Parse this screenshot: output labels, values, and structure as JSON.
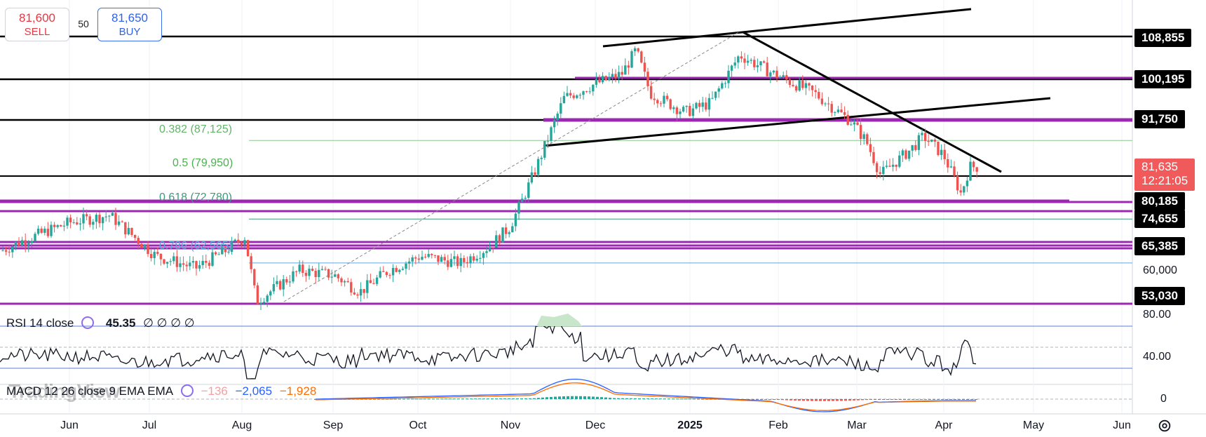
{
  "trade": {
    "sell_price": "81,600",
    "sell_label": "SELL",
    "spread": "50",
    "buy_price": "81,650",
    "buy_label": "BUY"
  },
  "fib": {
    "l382": "0.382 (87,125)",
    "l500": "0.5 (79,950)",
    "l618": "0.618 (72,780)",
    "l786": "0.786 (62,565)"
  },
  "price_tags": [
    "108,855",
    "100,195",
    "91,750",
    "80,185",
    "74,655",
    "65,385",
    "53,030"
  ],
  "current": {
    "price": "81,635",
    "countdown": "12:21:05"
  },
  "axis": {
    "price_labels": [
      "60,000"
    ],
    "rsi_labels": [
      "80.00",
      "40.00"
    ],
    "macd_labels": [
      "0"
    ]
  },
  "months": [
    "Jun",
    "Jul",
    "Aug",
    "Sep",
    "Oct",
    "Nov",
    "Dec",
    "2025",
    "Feb",
    "Mar",
    "Apr",
    "May",
    "Jun"
  ],
  "rsi": {
    "title": "RSI 14 close",
    "value": "45.35",
    "extras": "∅ ∅ ∅ ∅"
  },
  "macd": {
    "title": "MACD 12 26 close 9 EMA EMA",
    "hist": "−136",
    "macd": "−2,065",
    "signal": "−1,928"
  },
  "watermark": "TradingView",
  "colors": {
    "up": "#26a69a",
    "down": "#ef5350",
    "purple": "#9c27b0",
    "sell": "#e03945",
    "buy": "#2f62e8"
  },
  "chart_data": {
    "type": "candlestick",
    "horizontal_levels": [
      108855,
      100195,
      91750,
      80185,
      74655,
      65385,
      53030
    ],
    "fibonacci": [
      {
        "ratio": 0.382,
        "value": 87125
      },
      {
        "ratio": 0.5,
        "value": 79950
      },
      {
        "ratio": 0.618,
        "value": 72780
      },
      {
        "ratio": 0.786,
        "value": 62565
      }
    ],
    "closes": [
      [
        "2024-05-01",
        62000
      ],
      [
        "2024-05-15",
        66000
      ],
      [
        "2024-06-01",
        70000
      ],
      [
        "2024-06-15",
        71500
      ],
      [
        "2024-07-01",
        63000
      ],
      [
        "2024-07-15",
        60500
      ],
      [
        "2024-07-25",
        64000
      ],
      [
        "2024-08-01",
        67000
      ],
      [
        "2024-08-05",
        53500
      ],
      [
        "2024-08-20",
        60000
      ],
      [
        "2024-09-01",
        59000
      ],
      [
        "2024-09-10",
        55500
      ],
      [
        "2024-09-20",
        60000
      ],
      [
        "2024-10-01",
        63000
      ],
      [
        "2024-10-15",
        61500
      ],
      [
        "2024-10-25",
        65000
      ],
      [
        "2024-11-01",
        69000
      ],
      [
        "2024-11-05",
        74000
      ],
      [
        "2024-11-10",
        81000
      ],
      [
        "2024-11-20",
        96000
      ],
      [
        "2024-12-01",
        99000
      ],
      [
        "2024-12-10",
        101000
      ],
      [
        "2024-12-15",
        106000
      ],
      [
        "2024-12-20",
        97000
      ],
      [
        "2025-01-01",
        93000
      ],
      [
        "2025-01-10",
        95000
      ],
      [
        "2025-01-20",
        105000
      ],
      [
        "2025-02-01",
        101000
      ],
      [
        "2025-02-15",
        97000
      ],
      [
        "2025-02-28",
        91000
      ],
      [
        "2025-03-05",
        87000
      ],
      [
        "2025-03-10",
        80000
      ],
      [
        "2025-03-20",
        85000
      ],
      [
        "2025-03-25",
        88000
      ],
      [
        "2025-04-01",
        84000
      ],
      [
        "2025-04-07",
        76000
      ],
      [
        "2025-04-10",
        81635
      ]
    ],
    "rsi": {
      "value": 45.35,
      "levels": [
        80,
        40
      ]
    },
    "macd": {
      "hist": -136,
      "macd": -2065,
      "signal": -1928
    }
  }
}
